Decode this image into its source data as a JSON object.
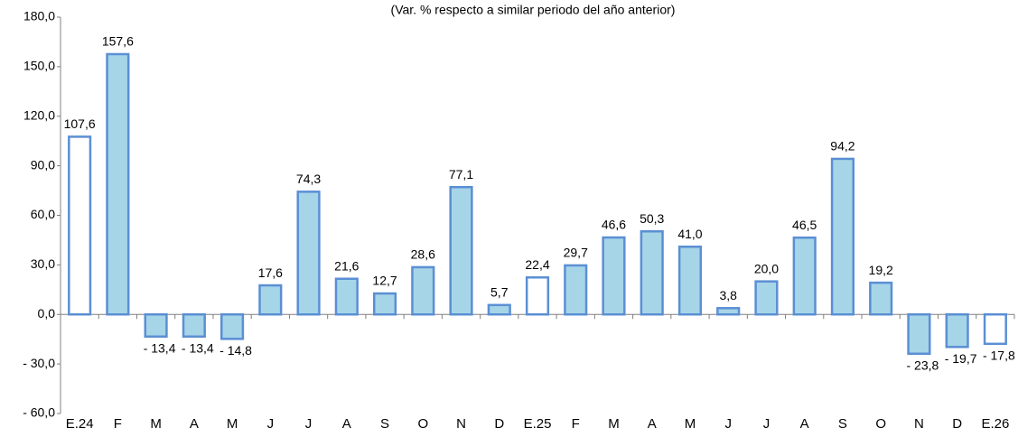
{
  "chart_data": {
    "type": "bar",
    "title": "(Var. % respecto a similar periodo del año anterior)",
    "categories": [
      "E.24",
      "F",
      "M",
      "A",
      "M",
      "J",
      "J",
      "A",
      "S",
      "O",
      "N",
      "D",
      "E.25",
      "F",
      "M",
      "A",
      "M",
      "J",
      "J",
      "A",
      "S",
      "O",
      "N",
      "D",
      "E.26"
    ],
    "values": [
      107.6,
      157.6,
      -13.4,
      -13.4,
      -14.8,
      17.6,
      74.3,
      21.6,
      12.7,
      28.6,
      77.1,
      5.7,
      22.4,
      29.7,
      46.6,
      50.3,
      41.0,
      3.8,
      20.0,
      46.5,
      94.2,
      19.2,
      -23.8,
      -19.7,
      -17.8
    ],
    "value_labels": [
      "107,6",
      "157,6",
      "- 13,4",
      "- 13,4",
      "- 14,8",
      "17,6",
      "74,3",
      "21,6",
      "12,7",
      "28,6",
      "77,1",
      "5,7",
      "22,4",
      "29,7",
      "46,6",
      "50,3",
      "41,0",
      "3,8",
      "20,0",
      "46,5",
      "94,2",
      "19,2",
      "- 23,8",
      "- 19,7",
      "- 17,8"
    ],
    "colors": [
      "#ffffff",
      "#a6d5e8",
      "#a6d5e8",
      "#a6d5e8",
      "#a6d5e8",
      "#a6d5e8",
      "#a6d5e8",
      "#a6d5e8",
      "#a6d5e8",
      "#a6d5e8",
      "#a6d5e8",
      "#a6d5e8",
      "#ffffff",
      "#a6d5e8",
      "#a6d5e8",
      "#a6d5e8",
      "#a6d5e8",
      "#a6d5e8",
      "#a6d5e8",
      "#a6d5e8",
      "#a6d5e8",
      "#a6d5e8",
      "#a6d5e8",
      "#a6d5e8",
      "#ffffff"
    ],
    "edge_color": "#5b8fd4",
    "ylim": [
      -60,
      180
    ],
    "yticks": [
      {
        "value": -60,
        "label": "- 60,0"
      },
      {
        "value": -30,
        "label": "- 30,0"
      },
      {
        "value": 0,
        "label": "0,0"
      },
      {
        "value": 30,
        "label": "30,0"
      },
      {
        "value": 60,
        "label": "60,0"
      },
      {
        "value": 90,
        "label": "90,0"
      },
      {
        "value": 120,
        "label": "120,0"
      },
      {
        "value": 150,
        "label": "150,0"
      },
      {
        "value": 180,
        "label": "180,0"
      }
    ],
    "grid": false
  }
}
